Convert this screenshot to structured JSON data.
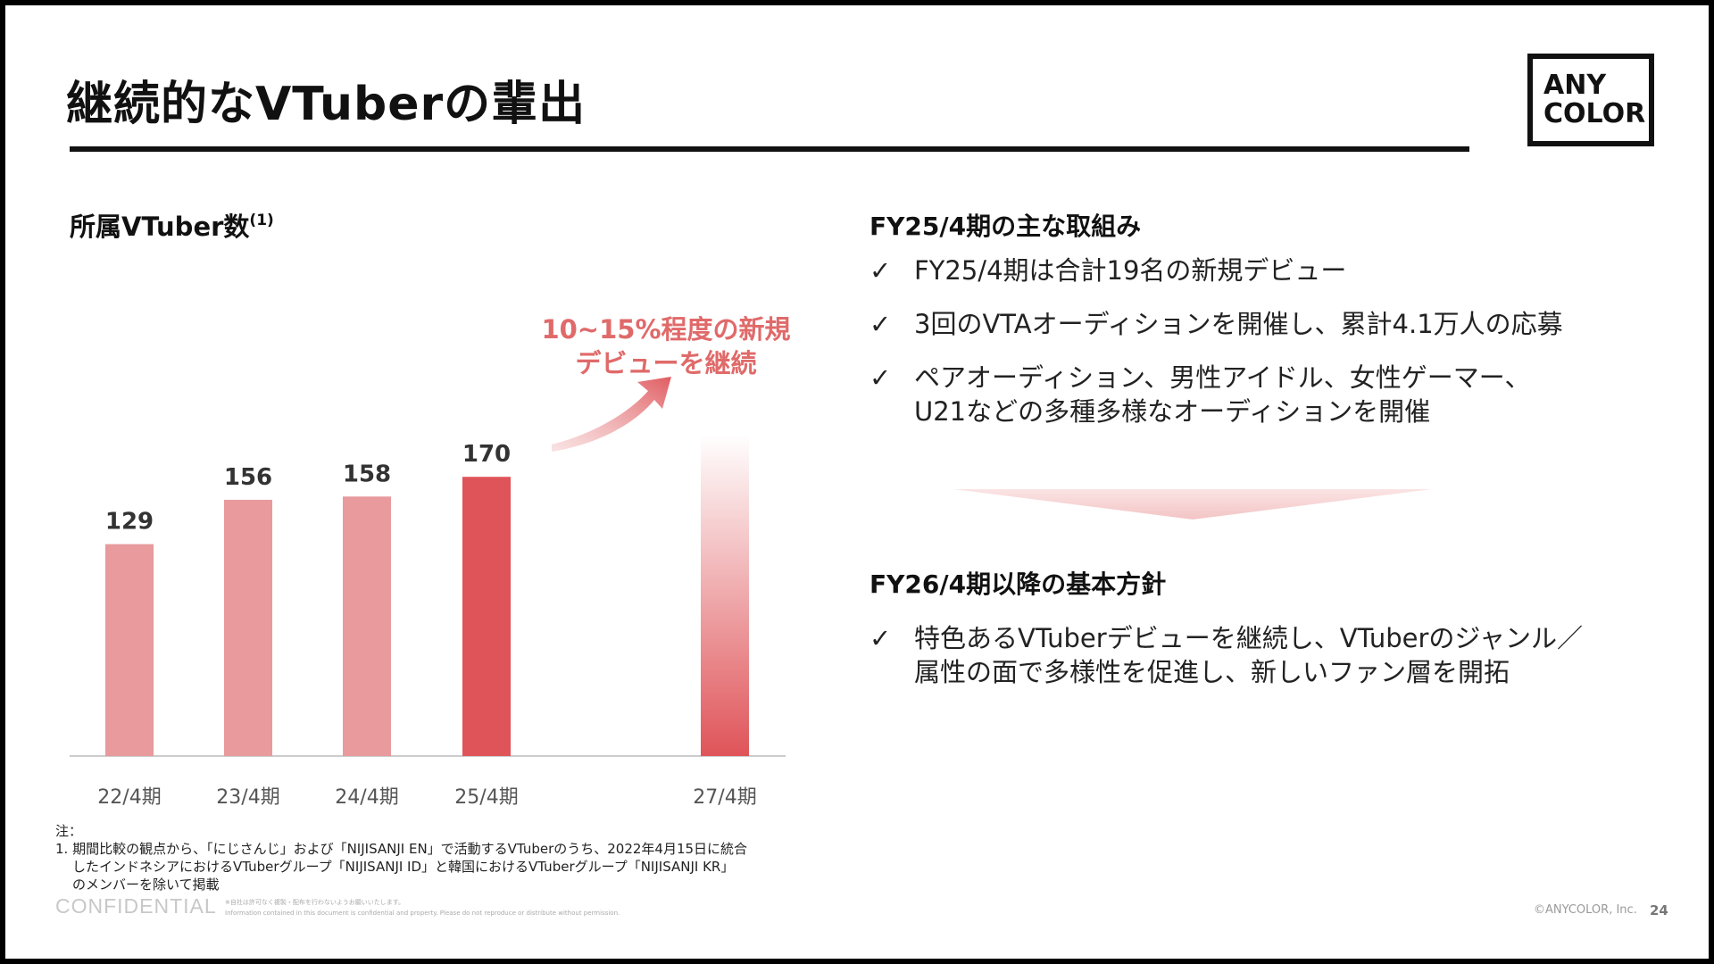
{
  "slide": {
    "title": "継続的なVTuberの輩出",
    "logo_line1": "ANY",
    "logo_line2": "COLOR"
  },
  "chart_title": {
    "text": "所属VTuber数",
    "superscript": "(1)"
  },
  "annotation": {
    "line1": "10~15%程度の新規",
    "line2": "デビューを継続"
  },
  "chart_data": {
    "type": "bar",
    "categories": [
      "22/4期",
      "23/4期",
      "24/4期",
      "25/4期",
      "27/4期"
    ],
    "values": [
      129,
      156,
      158,
      170,
      null
    ],
    "value_labels": [
      "129",
      "156",
      "158",
      "170",
      ""
    ],
    "projected_value_approx": 196,
    "title": "所属VTuber数",
    "xlabel": "",
    "ylabel": "",
    "ylim": [
      0,
      200
    ],
    "grid": false,
    "colors": {
      "past": "#e89a9c",
      "current": "#df5459",
      "projection_top": "#ffffff",
      "projection_bottom": "#df5459",
      "baseline": "#cccccc"
    }
  },
  "section1": {
    "heading": "FY25/4期の主な取組み",
    "bullets": [
      {
        "mark": "✓",
        "lines": [
          "FY25/4期は合計19名の新規デビュー"
        ]
      },
      {
        "mark": "✓",
        "lines": [
          "3回のVTAオーディションを開催し、累計4.1万人の応募"
        ]
      },
      {
        "mark": "✓",
        "lines": [
          "ペアオーディション、男性アイドル、女性ゲーマー、",
          "U21などの多種多様なオーディションを開催"
        ]
      }
    ]
  },
  "section2": {
    "heading": "FY26/4期以降の基本方針",
    "bullets": [
      {
        "mark": "✓",
        "lines": [
          "特色あるVTuberデビューを継続し、VTuberのジャンル／",
          "属性の面で多様性を促進し、新しいファン層を開拓"
        ]
      }
    ]
  },
  "notes": {
    "label": "注：",
    "line1": "1. 期間比較の観点から、「にじさんじ」および「NIJISANJI EN」で活動するVTuberのうち、2022年4月15日に統合",
    "line2": "したインドネシアにおけるVTuberグループ「NIJISANJI ID」と韓国におけるVTuberグループ「NIJISANJI KR」",
    "line3": "のメンバーを除いて掲載"
  },
  "footer": {
    "confidential": "CONFIDENTIAL",
    "fine_jp": "※自社は許可なく複製・配布を行わないようお願いいたします。",
    "fine_en": "Information contained in this document is confidential and property. Please do not reproduce or distribute without permission.",
    "copyright": "©ANYCOLOR, Inc.",
    "page": "24"
  },
  "colors": {
    "accent": "#df5459",
    "annotation_text": "#e06a6a",
    "down_arrow": "#f6d6d6"
  }
}
